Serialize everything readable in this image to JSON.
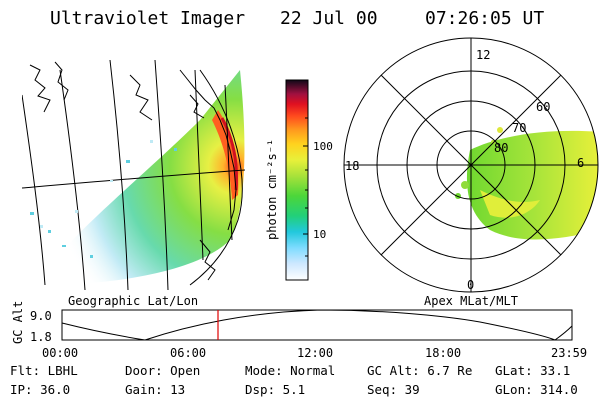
{
  "header": {
    "title": "Ultraviolet Imager",
    "date": "22 Jul 00",
    "time": "07:26:05 UT"
  },
  "colorbar": {
    "label": "photon cm⁻²s⁻¹",
    "ticks": [
      "100",
      "10"
    ]
  },
  "maps": {
    "geographic_label": "Geographic Lat/Lon",
    "apex_label": "Apex MLat/MLT"
  },
  "polar": {
    "mlt_labels": {
      "top": "12",
      "left": "18",
      "right": "6",
      "bottom": "0"
    },
    "lat_labels": [
      "60",
      "70",
      "80"
    ]
  },
  "altitude_plot": {
    "ylabel": "GC Alt",
    "yticks": [
      "9.0",
      "1.8"
    ],
    "xticks": [
      "00:00",
      "06:00",
      "12:00",
      "18:00",
      "23:59"
    ],
    "marker_color": "#e00000"
  },
  "status": {
    "flt": "Flt: LBHL",
    "ip": "IP: 36.0",
    "door": "Door: Open",
    "gain": "Gain: 13",
    "mode": "Mode: Normal",
    "dsp": "Dsp:    5.1",
    "gcalt": "GC Alt: 6.7 Re",
    "seq": "Seq: 39",
    "glat": "GLat:  33.1",
    "glon": "GLon: 314.0"
  }
}
